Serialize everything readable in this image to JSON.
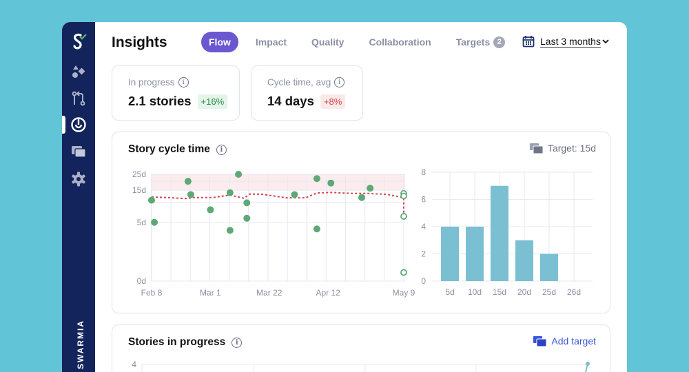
{
  "app": {
    "brand": "SWARMIA",
    "title": "Insights"
  },
  "sidebar": {
    "items": [
      {
        "name": "logo-icon"
      },
      {
        "name": "shapes-icon"
      },
      {
        "name": "pull-request-icon"
      },
      {
        "name": "target-icon",
        "active": true
      },
      {
        "name": "cards-icon"
      },
      {
        "name": "gear-icon"
      }
    ]
  },
  "tabs": [
    {
      "label": "Flow",
      "active": true
    },
    {
      "label": "Impact"
    },
    {
      "label": "Quality"
    },
    {
      "label": "Collaboration"
    },
    {
      "label": "Targets",
      "badge": "2"
    }
  ],
  "date_range": {
    "label": "Last 3 months",
    "icon": "calendar-icon"
  },
  "kpis": [
    {
      "label": "In progress",
      "value": "2.1 stories",
      "change": "+16%",
      "change_color": "#2e8a4f",
      "change_bg": "#e3f4e8"
    },
    {
      "label": "Cycle time, avg",
      "value": "14 days",
      "change": "+8%",
      "change_color": "#d2434b",
      "change_bg": "#fbe9ea"
    }
  ],
  "cycle_card": {
    "title": "Story cycle time",
    "target_label": "Target: 15d"
  },
  "progress_card": {
    "title": "Stories in progress",
    "add_target": "Add target"
  },
  "colors": {
    "accent": "#6b57d0",
    "sidebar": "#13235b",
    "point": "#5ea876",
    "trend": "#d2434b",
    "bar": "#7bbfd3",
    "link": "#3b55d9"
  },
  "chart_data": [
    {
      "type": "scatter",
      "y_scale": "log(1+x)",
      "ylim": [
        0,
        25
      ],
      "y_ticks": [
        "0d",
        "5d",
        "15d",
        "25d"
      ],
      "y_tick_values": [
        0,
        5,
        15,
        25
      ],
      "x_ticks": [
        "Feb 8",
        "Mar 1",
        "Mar 22",
        "Apr 12",
        "May 9"
      ],
      "target_band": [
        15,
        25
      ],
      "completed": [
        [
          "Feb 8",
          10.8
        ],
        [
          "Feb 9",
          5
        ],
        [
          "Feb 21",
          20
        ],
        [
          "Feb 22",
          13
        ],
        [
          "Mar 1",
          7.8
        ],
        [
          "Mar 8",
          13.8
        ],
        [
          "Mar 8",
          3.7
        ],
        [
          "Mar 11",
          25
        ],
        [
          "Mar 14",
          9.9
        ],
        [
          "Mar 14",
          5.8
        ],
        [
          "Mar 31",
          13
        ],
        [
          "Apr 8",
          21.8
        ],
        [
          "Apr 8",
          3.9
        ],
        [
          "Apr 13",
          18.9
        ],
        [
          "Apr 24",
          11.8
        ],
        [
          "Apr 27",
          16
        ]
      ],
      "in_progress": [
        [
          "May 9",
          13.5
        ],
        [
          "May 9",
          12.4
        ],
        [
          "May 9",
          6.2
        ],
        [
          "May 9",
          0.3
        ]
      ],
      "trend": [
        [
          "Feb 8",
          12.0
        ],
        [
          "Feb 15",
          11.7
        ],
        [
          "Feb 20",
          11.4
        ],
        [
          "Feb 23",
          11.8
        ],
        [
          "Mar 2",
          11.8
        ],
        [
          "Mar 8",
          12.8
        ],
        [
          "Mar 13",
          11.5
        ],
        [
          "Mar 15",
          13.2
        ],
        [
          "Mar 19",
          13.2
        ],
        [
          "Mar 28",
          11.7
        ],
        [
          "Apr 4",
          11.7
        ],
        [
          "Apr 8",
          13.7
        ],
        [
          "Apr 13",
          13.95
        ],
        [
          "Apr 21",
          13.5
        ],
        [
          "Apr 26",
          13.5
        ],
        [
          "May 3",
          13.1
        ],
        [
          "May 9",
          11.7
        ],
        [
          "May 9",
          6.4
        ]
      ]
    },
    {
      "type": "bar",
      "categories": [
        "5d",
        "10d",
        "15d",
        "20d",
        "25d",
        "26d"
      ],
      "values": [
        4,
        4,
        7,
        3,
        2,
        0
      ],
      "ylim": [
        0,
        8
      ],
      "y_ticks": [
        0,
        2,
        4,
        6,
        8
      ]
    },
    {
      "type": "line",
      "y_ticks": [
        4
      ],
      "values": [
        4
      ]
    }
  ]
}
